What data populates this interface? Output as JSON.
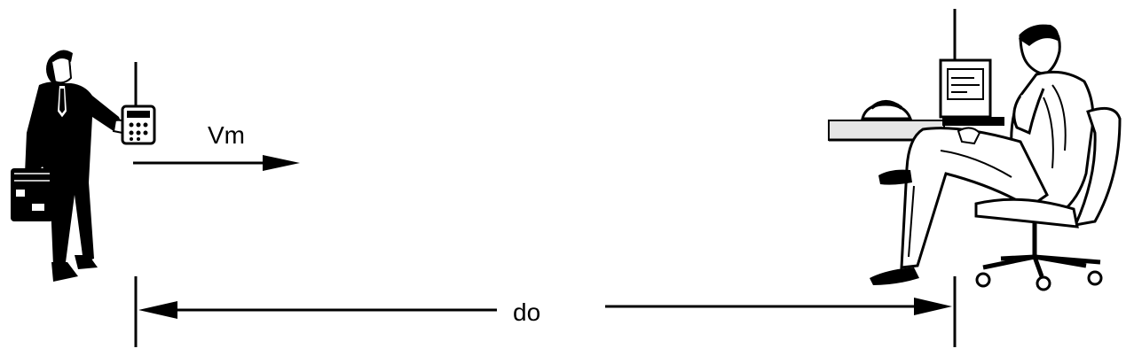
{
  "diagram": {
    "velocity_label": "Vm",
    "distance_label": "do",
    "colors": {
      "ink": "#000000",
      "background": "#ffffff",
      "screen": "#ffffff",
      "desk": "#e6e6e6"
    },
    "figures": {
      "mobile_user": {
        "icon": "walking-businessman-with-handheld-radio-icon"
      },
      "base_station": {
        "icon": "seated-man-at-desk-computer-icon"
      }
    }
  }
}
